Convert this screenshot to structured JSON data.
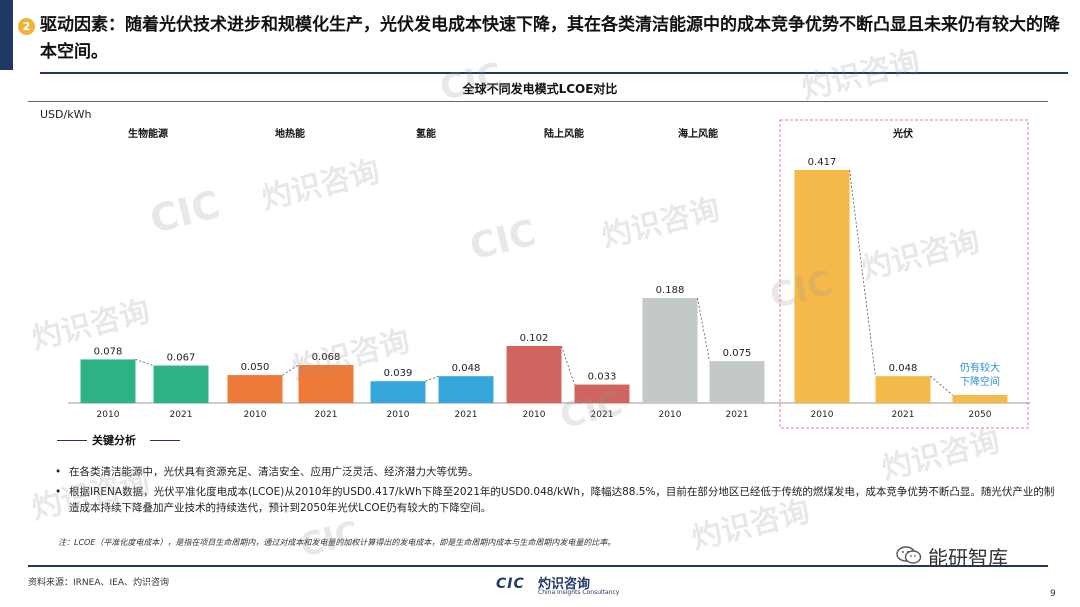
{
  "header": {
    "number": "2",
    "title": "驱动因素：随着光伏技术进步和规模化生产，光伏发电成本快速下降，其在各类清洁能源中的成本竞争优势不断凸显且未来仍有较大的降本空间。"
  },
  "chart_data": {
    "type": "bar",
    "title": "全球不同发电模式LCOE对比",
    "ylabel": "USD/kWh",
    "groups": [
      {
        "name": "生物能源",
        "color": "#2eb384",
        "bars": [
          {
            "x": "2010",
            "value": 0.078
          },
          {
            "x": "2021",
            "value": 0.067
          }
        ]
      },
      {
        "name": "地热能",
        "color": "#ee7a3a",
        "bars": [
          {
            "x": "2010",
            "value": 0.05
          },
          {
            "x": "2021",
            "value": 0.068
          }
        ]
      },
      {
        "name": "氢能",
        "color": "#35a7dc",
        "bars": [
          {
            "x": "2010",
            "value": 0.039
          },
          {
            "x": "2021",
            "value": 0.048
          }
        ]
      },
      {
        "name": "陆上风能",
        "color": "#d0655f",
        "bars": [
          {
            "x": "2010",
            "value": 0.102
          },
          {
            "x": "2021",
            "value": 0.033
          }
        ]
      },
      {
        "name": "海上风能",
        "color": "#c3c8c9",
        "bars": [
          {
            "x": "2010",
            "value": 0.188
          },
          {
            "x": "2021",
            "value": 0.075
          }
        ]
      },
      {
        "name": "光伏",
        "color": "#f5b94a",
        "bars": [
          {
            "x": "2010",
            "value": 0.417
          },
          {
            "x": "2021",
            "value": 0.048
          },
          {
            "x": "2050",
            "value": null
          }
        ]
      }
    ],
    "annotation": "仍有较大下降空间",
    "ylim": [
      0,
      0.417
    ]
  },
  "analysis": {
    "heading": "关键分析",
    "bullets": [
      "在各类清洁能源中，光伏具有资源充足、清洁安全、应用广泛灵活、经济潜力大等优势。",
      "根据IRENA数据，光伏平准化度电成本(LCOE)从2010年的USD0.417/kWh下降至2021年的USD0.048/kWh，降幅达88.5%，目前在部分地区已经低于传统的燃煤发电，成本竞争优势不断凸显。随光伏产业的制造成本持续下降叠加产业技术的持续迭代，预计到2050年光伏LCOE仍有较大的下降空间。"
    ],
    "note": "注：LCOE（平准化度电成本），是指在项目生命周期内，通过对成本和发电量的加权计算得出的发电成本，即是生命周期内成本与生命周期内发电量的比率。"
  },
  "footer": {
    "source": "资料来源：IRNEA、IEA、灼识咨询",
    "logo_mark": "CIC",
    "logo_cn": "灼识咨询",
    "logo_en": "China Insights Consultancy",
    "wechat": "能研智库",
    "page": "9"
  },
  "watermark": {
    "mark": "CIC",
    "cn": "灼识咨询",
    "en": "China Insights Consultancy"
  }
}
